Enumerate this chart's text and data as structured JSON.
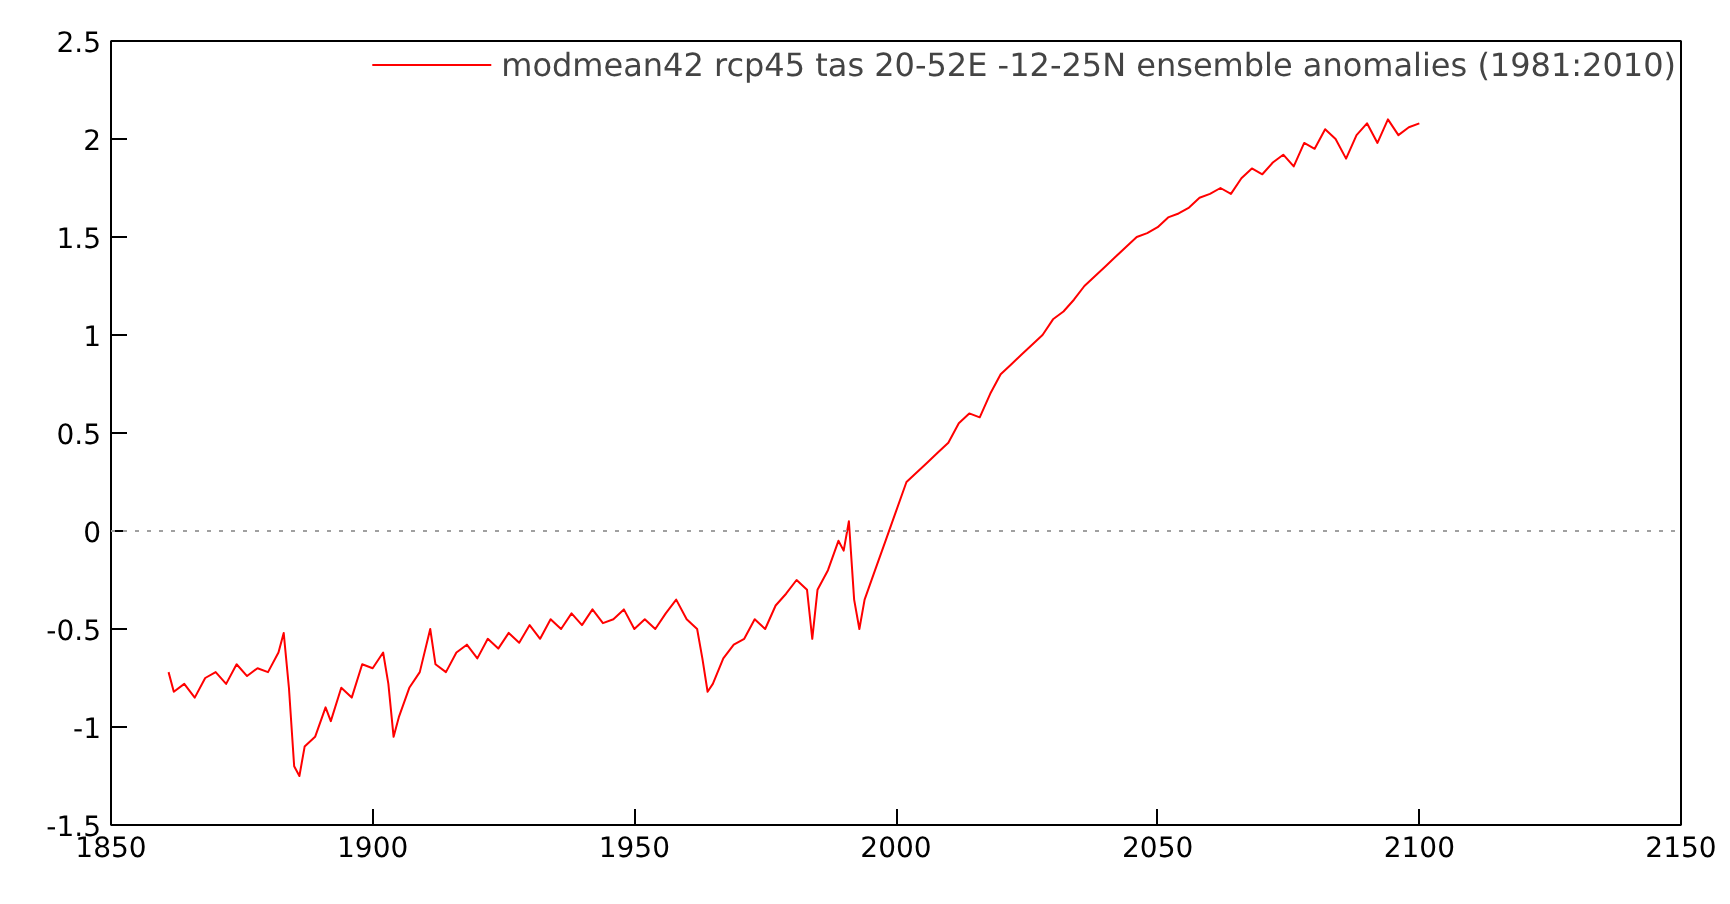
{
  "chart_data": {
    "type": "line",
    "xlim": [
      1850,
      2150
    ],
    "ylim": [
      -1.5,
      2.5
    ],
    "xticks": [
      1850,
      1900,
      1950,
      2000,
      2050,
      2100,
      2150
    ],
    "yticks": [
      -1.5,
      -1,
      -0.5,
      0,
      0.5,
      1,
      1.5,
      2,
      2.5
    ],
    "grid": false,
    "legend": "top right",
    "ref_lines": [
      {
        "axis": "y",
        "value": 0,
        "color": "#a0a0a0",
        "line_style": "dotted"
      }
    ],
    "series": [
      {
        "name": "modmean42 rcp45 tas 20-52E -12-25N ensemble anomalies (1981:2010)",
        "color": "#ff0000",
        "x": [
          1861,
          1862,
          1864,
          1866,
          1868,
          1870,
          1872,
          1874,
          1876,
          1878,
          1880,
          1882,
          1883,
          1884,
          1885,
          1886,
          1887,
          1889,
          1891,
          1892,
          1894,
          1896,
          1898,
          1900,
          1902,
          1903,
          1904,
          1905,
          1907,
          1909,
          1911,
          1912,
          1914,
          1916,
          1918,
          1920,
          1922,
          1924,
          1926,
          1928,
          1930,
          1932,
          1934,
          1936,
          1938,
          1940,
          1942,
          1944,
          1946,
          1948,
          1950,
          1952,
          1954,
          1956,
          1958,
          1960,
          1962,
          1963,
          1964,
          1965,
          1967,
          1969,
          1971,
          1973,
          1975,
          1977,
          1979,
          1981,
          1983,
          1984,
          1985,
          1987,
          1989,
          1990,
          1991,
          1992,
          1993,
          1994,
          1996,
          1998,
          2000,
          2002,
          2004,
          2006,
          2008,
          2010,
          2012,
          2014,
          2016,
          2018,
          2020,
          2022,
          2024,
          2026,
          2028,
          2030,
          2032,
          2034,
          2036,
          2038,
          2040,
          2042,
          2044,
          2046,
          2048,
          2050,
          2052,
          2054,
          2056,
          2058,
          2060,
          2062,
          2064,
          2066,
          2068,
          2070,
          2072,
          2074,
          2076,
          2078,
          2080,
          2082,
          2084,
          2086,
          2088,
          2090,
          2092,
          2094,
          2096,
          2098,
          2100
        ],
        "values": [
          -0.72,
          -0.82,
          -0.78,
          -0.85,
          -0.75,
          -0.72,
          -0.78,
          -0.68,
          -0.74,
          -0.7,
          -0.72,
          -0.62,
          -0.52,
          -0.8,
          -1.2,
          -1.25,
          -1.1,
          -1.05,
          -0.9,
          -0.97,
          -0.8,
          -0.85,
          -0.68,
          -0.7,
          -0.62,
          -0.78,
          -1.05,
          -0.95,
          -0.8,
          -0.72,
          -0.5,
          -0.68,
          -0.72,
          -0.62,
          -0.58,
          -0.65,
          -0.55,
          -0.6,
          -0.52,
          -0.57,
          -0.48,
          -0.55,
          -0.45,
          -0.5,
          -0.42,
          -0.48,
          -0.4,
          -0.47,
          -0.45,
          -0.4,
          -0.5,
          -0.45,
          -0.5,
          -0.42,
          -0.35,
          -0.45,
          -0.5,
          -0.65,
          -0.82,
          -0.78,
          -0.65,
          -0.58,
          -0.55,
          -0.45,
          -0.5,
          -0.38,
          -0.32,
          -0.25,
          -0.3,
          -0.55,
          -0.3,
          -0.2,
          -0.05,
          -0.1,
          0.05,
          -0.35,
          -0.5,
          -0.35,
          -0.2,
          -0.05,
          0.1,
          0.25,
          0.3,
          0.35,
          0.4,
          0.45,
          0.55,
          0.6,
          0.58,
          0.7,
          0.8,
          0.85,
          0.9,
          0.95,
          1.0,
          1.08,
          1.12,
          1.18,
          1.25,
          1.3,
          1.35,
          1.4,
          1.45,
          1.5,
          1.52,
          1.55,
          1.6,
          1.62,
          1.65,
          1.7,
          1.72,
          1.75,
          1.72,
          1.8,
          1.85,
          1.82,
          1.88,
          1.92,
          1.86,
          1.98,
          1.95,
          2.05,
          2.0,
          1.9,
          2.02,
          2.08,
          1.98,
          2.1,
          2.02,
          2.06,
          2.08
        ]
      }
    ]
  }
}
